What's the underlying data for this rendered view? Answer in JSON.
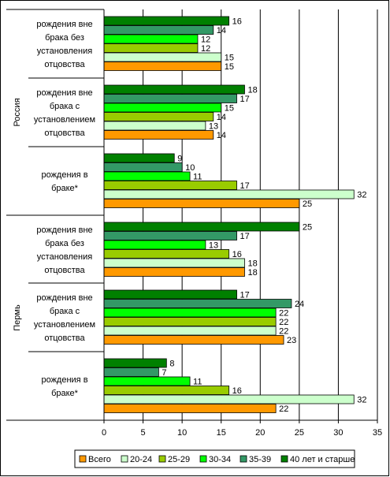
{
  "chart_data": {
    "type": "bar",
    "orientation": "horizontal",
    "groups": [
      {
        "name": "Россия",
        "categories": [
          0,
          1,
          2
        ]
      },
      {
        "name": "Пермь",
        "categories": [
          3,
          4,
          5
        ]
      }
    ],
    "categories": [
      {
        "label_lines": [
          "рождения вне",
          "брака без",
          "установления",
          "отцовства"
        ]
      },
      {
        "label_lines": [
          "рождения вне",
          "брака с",
          "установлением",
          "отцовства"
        ]
      },
      {
        "label_lines": [
          "рождения в",
          "браке*"
        ]
      },
      {
        "label_lines": [
          "рождения вне",
          "брака без",
          "установления",
          "отцовства"
        ]
      },
      {
        "label_lines": [
          "рождения вне",
          "брака с",
          "установлением",
          "отцовства"
        ]
      },
      {
        "label_lines": [
          "рождения в",
          "браке*"
        ]
      }
    ],
    "series": [
      {
        "name": "Всего",
        "color": "#ff9900",
        "values": [
          15,
          14,
          25,
          18,
          23,
          22
        ]
      },
      {
        "name": "20-24",
        "color": "#ccffcc",
        "values": [
          15,
          13,
          32,
          18,
          22,
          32
        ]
      },
      {
        "name": "25-29",
        "color": "#99cc00",
        "values": [
          12,
          14,
          17,
          16,
          22,
          16
        ]
      },
      {
        "name": "30-34",
        "color": "#00ff00",
        "values": [
          12,
          15,
          11,
          13,
          22,
          11
        ]
      },
      {
        "name": "35-39",
        "color": "#339966",
        "values": [
          14,
          17,
          10,
          17,
          24,
          7
        ]
      },
      {
        "name": "40 лет и старше",
        "color": "#008000",
        "values": [
          16,
          18,
          9,
          25,
          17,
          8
        ]
      }
    ],
    "xlim": [
      0,
      35
    ],
    "xticks": [
      0,
      5,
      10,
      15,
      20,
      25,
      30,
      35
    ],
    "grid": true,
    "legend_position": "bottom"
  }
}
